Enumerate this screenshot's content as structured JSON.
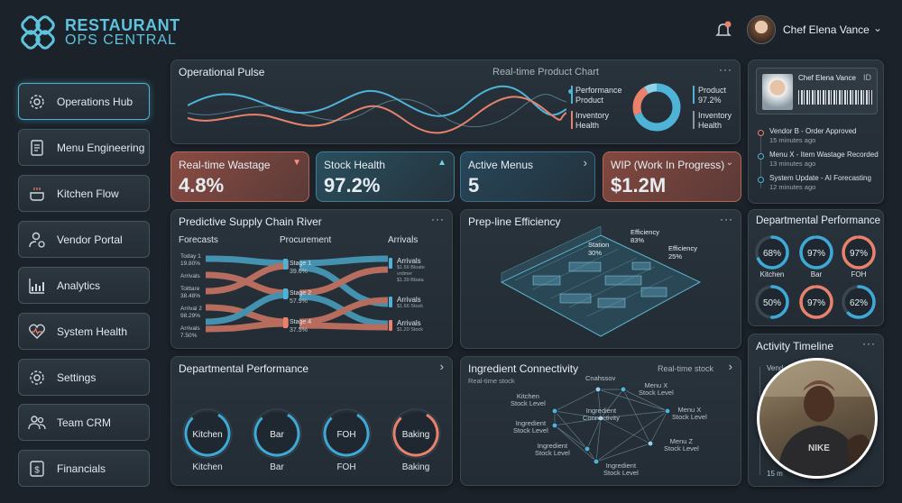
{
  "brand": {
    "line1": "RESTAURANT",
    "line2": "OPS CENTRAL"
  },
  "user": {
    "name": "Chef Elena Vance"
  },
  "nav": [
    {
      "label": "Operations Hub",
      "icon": "gear-icon",
      "active": true
    },
    {
      "label": "Menu Engineering",
      "icon": "document-icon",
      "active": false
    },
    {
      "label": "Kitchen Flow",
      "icon": "cooking-pot-icon",
      "active": false
    },
    {
      "label": "Vendor Portal",
      "icon": "user-gear-icon",
      "active": false
    },
    {
      "label": "Analytics",
      "icon": "bar-chart-icon",
      "active": false
    },
    {
      "label": "System Health",
      "icon": "heart-pulse-icon",
      "active": false
    },
    {
      "label": "Settings",
      "icon": "gear-icon",
      "active": false
    },
    {
      "label": "Team CRM",
      "icon": "team-icon",
      "active": false
    },
    {
      "label": "Financials",
      "icon": "dollar-icon",
      "active": false
    }
  ],
  "pulse": {
    "title": "Operational Pulse",
    "subtitle": "Real-time Product Chart",
    "more": "···",
    "legend_left": [
      "Performance Product",
      "Inventory Health"
    ],
    "legend_right": [
      {
        "label": "Product",
        "value": "97.2%"
      },
      {
        "label": "Inventory Health",
        "value": ""
      }
    ]
  },
  "kpis": [
    {
      "label": "Real-time Wastage",
      "value": "4.8%",
      "icon": "▼"
    },
    {
      "label": "Stock Health",
      "value": "97.2%",
      "icon": "▲"
    },
    {
      "label": "Active Menus",
      "value": "5",
      "icon": "›"
    },
    {
      "label": "WIP (Work In Progress)",
      "value": "$1.2M",
      "icon": "⌄"
    }
  ],
  "idcard": {
    "name": "Chef Elena Vance",
    "tag": "ID"
  },
  "activity": [
    {
      "text": "Vendor B - Order Approved",
      "time": "15 minutes ago"
    },
    {
      "text": "Menu X - Item Wastage Recorded",
      "time": "13 minutes ago"
    },
    {
      "text": "System Update - AI Forecasting",
      "time": "12 minutes ago"
    }
  ],
  "supply": {
    "title": "Predictive Supply Chain River",
    "more": "···",
    "columns": [
      "Forecasts",
      "Procurement",
      "Arrivals"
    ],
    "forecasts": [
      {
        "label": "Today 1",
        "value": "19.80%"
      },
      {
        "label": "Arrivals",
        "value": ""
      },
      {
        "label": "Toittare",
        "value": "38.48%"
      },
      {
        "label": "Arrival 2",
        "value": "98.29%"
      },
      {
        "label": "Arrivals",
        "value": "7.50%"
      }
    ],
    "stages": [
      {
        "label": "Stage 1",
        "value": "39.6%"
      },
      {
        "label": "Stage 2",
        "value": "57.9%"
      },
      {
        "label": "Stage 4",
        "value": "37.5%"
      }
    ],
    "arrivals": [
      {
        "label": "Arrivals",
        "l1": "$1.56 Bloate",
        "l2": "vrdmer",
        "l3": "$1.39 Bbata"
      },
      {
        "label": "Arrivals",
        "l1": "$1.66 Stock",
        "l2": "",
        "l3": ""
      },
      {
        "label": "Arrivals",
        "l1": "$1.20 Stock",
        "l2": "",
        "l3": ""
      }
    ]
  },
  "prep": {
    "title": "Prep-line Efficiency",
    "more": "···",
    "labels": [
      {
        "label": "Station",
        "value": "30%"
      },
      {
        "label": "Efficiency",
        "value": "83%"
      },
      {
        "label": "Efficiency",
        "value": "25%"
      }
    ]
  },
  "dept_right": {
    "title": "Departmental Performance",
    "rings": [
      {
        "value": "68%",
        "label": "Kitchen",
        "pct": 68,
        "color": "#3fa9d6"
      },
      {
        "value": "97%",
        "label": "Bar",
        "pct": 97,
        "color": "#3fa9d6"
      },
      {
        "value": "97%",
        "label": "FOH",
        "pct": 97,
        "color": "#e8826c"
      },
      {
        "value": "50%",
        "label": "",
        "pct": 50,
        "color": "#3fa9d6"
      },
      {
        "value": "97%",
        "label": "",
        "pct": 97,
        "color": "#e8826c"
      },
      {
        "value": "62%",
        "label": "",
        "pct": 62,
        "color": "#3fa9d6"
      }
    ]
  },
  "dept_bottom": {
    "title": "Departmental Performance",
    "more": "›",
    "rings": [
      {
        "inner": "Kitchen",
        "label": "Kitchen",
        "color": "#3fa9d6"
      },
      {
        "inner": "Bar",
        "label": "Bar",
        "color": "#3fa9d6"
      },
      {
        "inner": "FOH",
        "label": "FOH",
        "color": "#3fa9d6"
      },
      {
        "inner": "Baking",
        "label": "Baking",
        "color": "#e8826c"
      }
    ]
  },
  "ingredient": {
    "title": "Ingredient Connectivity",
    "subtitle": "Real-time stock",
    "right": "Real-time stock",
    "more": "›",
    "nodes": [
      {
        "l1": "Cnahssov",
        "l2": ""
      },
      {
        "l1": "Kitchen",
        "l2": "Stock Level"
      },
      {
        "l1": "Menu X",
        "l2": "Stock Level"
      },
      {
        "l1": "Ingredient",
        "l2": "Connectivity"
      },
      {
        "l1": "Menu X",
        "l2": "Stock Level"
      },
      {
        "l1": "Ingredient",
        "l2": "Stock Level"
      },
      {
        "l1": "Menu Z",
        "l2": "Stock Level"
      },
      {
        "l1": "Ingredient",
        "l2": "Stock Level"
      },
      {
        "l1": "Ingredient",
        "l2": "Stock Level"
      }
    ]
  },
  "timeline": {
    "title": "Activity Timeline",
    "more": "···",
    "items": [
      "Vend",
      "...",
      "...",
      "...",
      "...",
      "15 m"
    ]
  }
}
